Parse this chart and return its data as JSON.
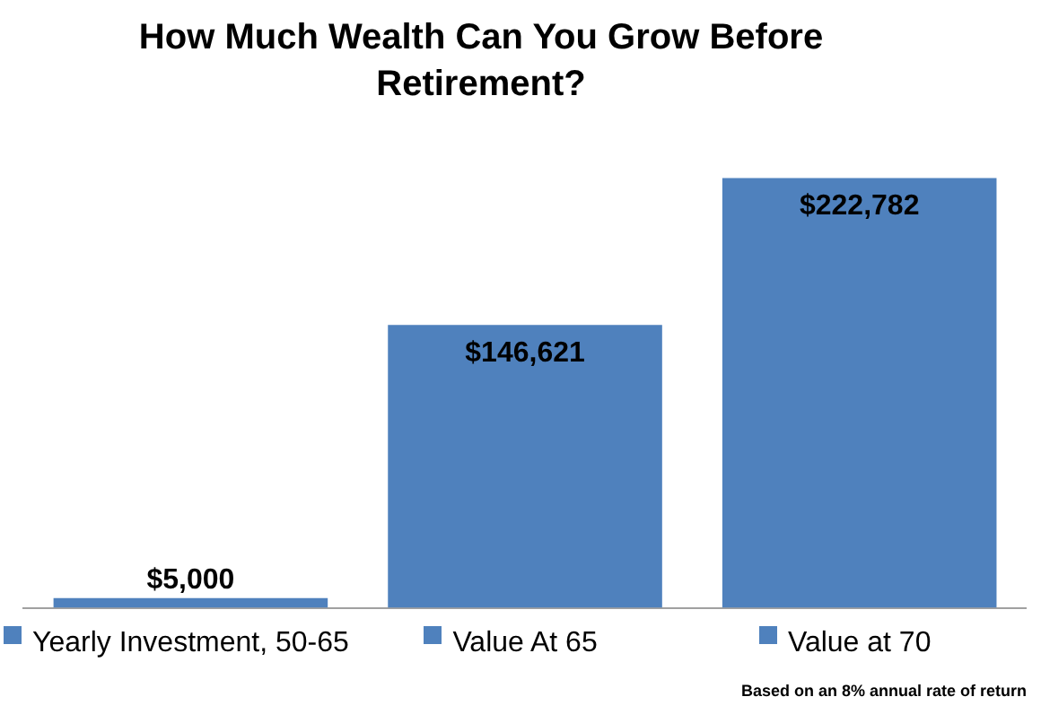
{
  "chart_data": {
    "type": "bar",
    "title": "How Much Wealth Can You Grow Before Retirement?",
    "categories": [
      "Yearly Investment, 50-65",
      "Value At 65",
      "Value at 70"
    ],
    "values": [
      5000,
      146621,
      222782
    ],
    "value_labels": [
      "$5,000",
      "$146,621",
      "$222,782"
    ],
    "color": "#4f81bd",
    "grid": false,
    "annotations": [
      "Based on an 8% annual rate of return"
    ]
  }
}
